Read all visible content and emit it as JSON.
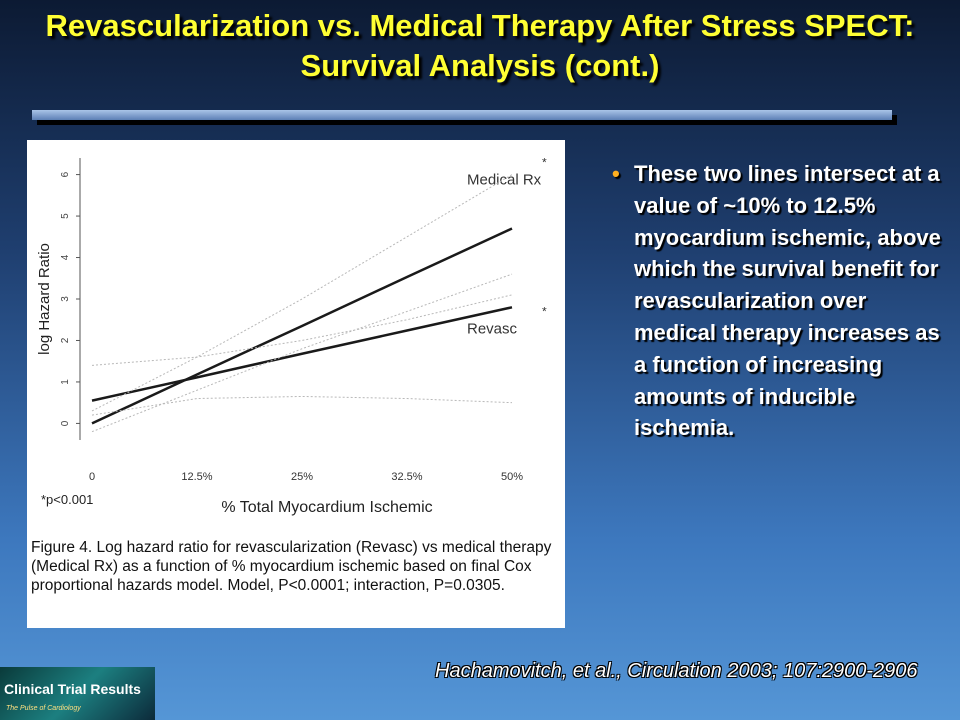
{
  "slide": {
    "title": "Revascularization vs. Medical Therapy After Stress SPECT: Survival Analysis (cont.)",
    "bullet": "These two lines intersect at a value of ~10% to 12.5% myocardium ischemic, above which the survival benefit for revascularization over medical therapy increases as a function of increasing amounts of inducible ischemia.",
    "citation": "Hachamovitch, et al., Circulation 2003; 107:2900-2906",
    "logo_title": "Clinical Trial Results",
    "logo_tagline": "The Pulse of Cardiology"
  },
  "chart_data": {
    "type": "line",
    "x_label": "% Total Myocardium Ischemic",
    "y_label": "log Hazard Ratio",
    "categories": [
      "0",
      "12.5%",
      "25%",
      "32.5%",
      "50%"
    ],
    "ylim": [
      -0.4,
      6.4
    ],
    "yticks": [
      0,
      1,
      2,
      3,
      4,
      5,
      6
    ],
    "series": [
      {
        "name": "Medical Rx",
        "color": "#1a1a1a",
        "values": [
          0,
          1.18,
          2.35,
          3.53,
          4.7
        ]
      },
      {
        "name": "Revasc",
        "color": "#1a1a1a",
        "values": [
          0.55,
          1.11,
          1.68,
          2.24,
          2.8
        ]
      },
      {
        "color": "#b8b8b8",
        "dash": true,
        "values": [
          0.3,
          1.6,
          3.0,
          4.5,
          6.0
        ]
      },
      {
        "color": "#b8b8b8",
        "dash": true,
        "values": [
          -0.2,
          0.8,
          1.8,
          2.7,
          3.6
        ]
      },
      {
        "color": "#b8b8b8",
        "dash": true,
        "values": [
          1.4,
          1.6,
          2.0,
          2.5,
          3.1
        ]
      },
      {
        "color": "#b8b8b8",
        "dash": true,
        "values": [
          0.2,
          0.6,
          0.65,
          0.6,
          0.5
        ]
      }
    ],
    "series_marker": "*",
    "annotation": "*p<0.001",
    "caption": "Figure 4. Log hazard ratio for revascularization (Revasc) vs medical therapy (Medical Rx) as a function of % myocardium ischemic based on final Cox proportional hazards model. Model, P<0.0001; interaction, P=0.0305."
  }
}
